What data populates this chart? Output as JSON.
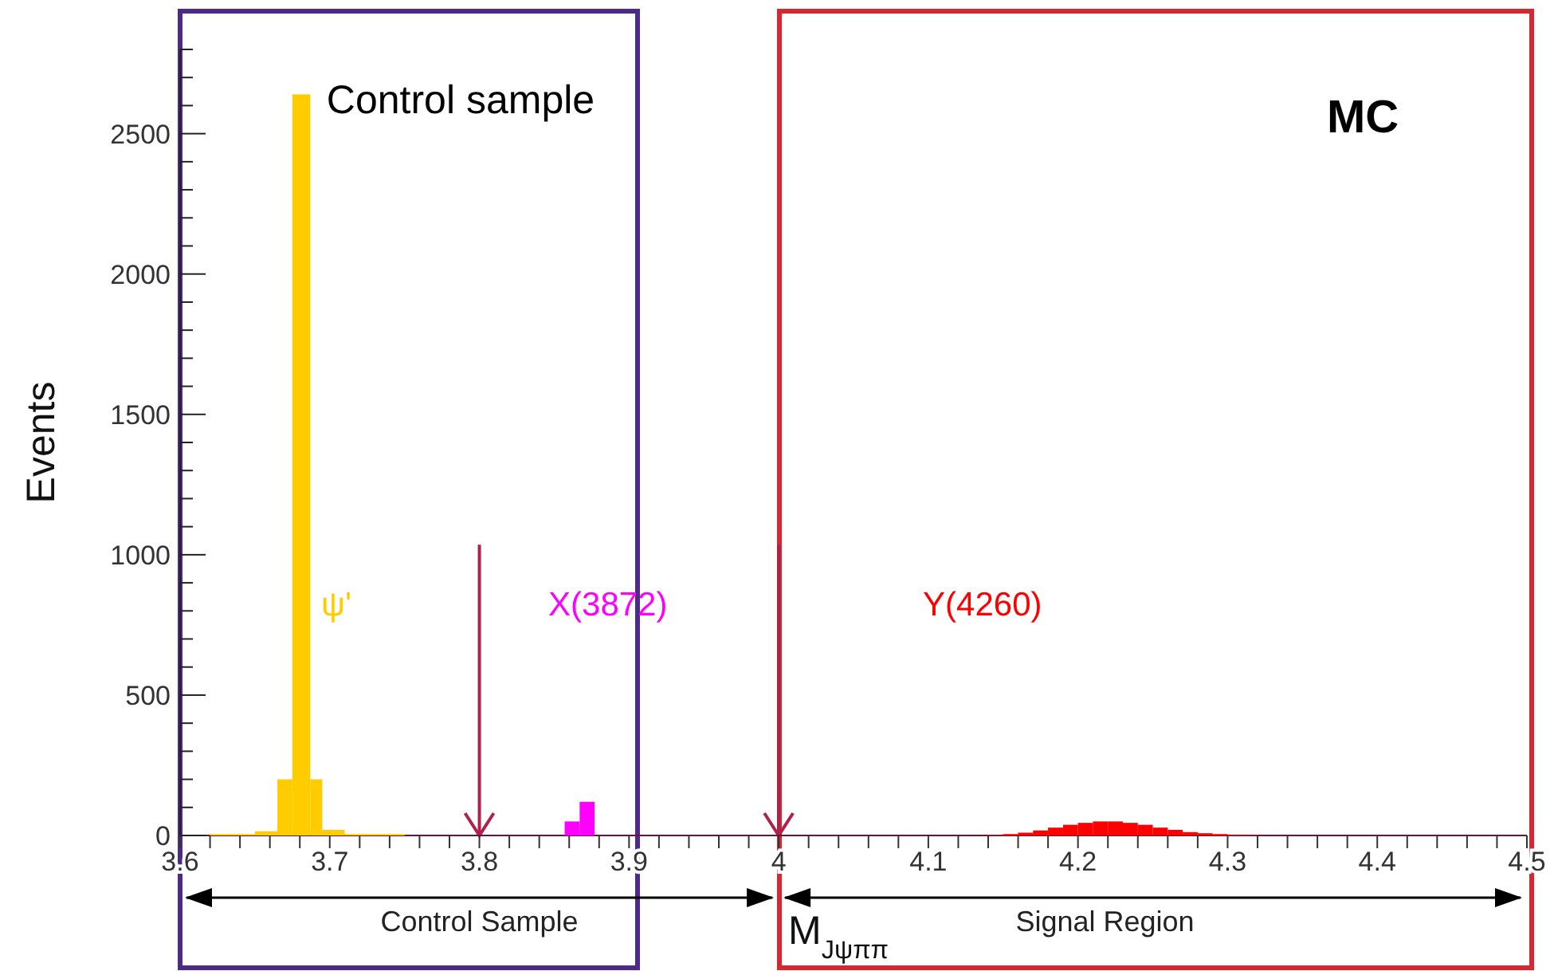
{
  "chart_data": {
    "type": "histogram",
    "xlabel": "M$_{Jψππ}$",
    "ylabel": "Events",
    "xlim": [
      3.6,
      4.5
    ],
    "xticks": [
      3.6,
      {
        "value": 3.62,
        "label": null
      },
      {
        "value": 3.64,
        "label": null
      },
      {
        "value": 3.66,
        "label": null
      },
      {
        "value": 3.68,
        "label": null
      },
      3.7,
      {
        "value": 3.72,
        "label": null
      },
      {
        "value": 3.74,
        "label": null
      },
      {
        "value": 3.76,
        "label": null
      },
      {
        "value": 3.78,
        "label": null
      },
      3.8,
      {
        "value": 3.82,
        "label": null
      },
      {
        "value": 3.84,
        "label": null
      },
      {
        "value": 3.86,
        "label": null
      },
      {
        "value": 3.88,
        "label": null
      },
      3.9,
      {
        "value": 3.92,
        "label": null
      },
      {
        "value": 3.94,
        "label": null
      },
      {
        "value": 3.96,
        "label": null
      },
      {
        "value": 3.98,
        "label": null
      },
      4,
      {
        "value": 4.02,
        "label": null
      },
      {
        "value": 4.04,
        "label": null
      },
      {
        "value": 4.06,
        "label": null
      },
      {
        "value": 4.08,
        "label": null
      },
      4.1,
      {
        "value": 4.12,
        "label": null
      },
      {
        "value": 4.14,
        "label": null
      },
      {
        "value": 4.16,
        "label": null
      },
      {
        "value": 4.18,
        "label": null
      },
      4.2,
      {
        "value": 4.22,
        "label": null
      },
      {
        "value": 4.24,
        "label": null
      },
      {
        "value": 4.26,
        "label": null
      },
      {
        "value": 4.28,
        "label": null
      },
      4.3,
      {
        "value": 4.32,
        "label": null
      },
      {
        "value": 4.34,
        "label": null
      },
      {
        "value": 4.36,
        "label": null
      },
      {
        "value": 4.38,
        "label": null
      },
      4.4,
      {
        "value": 4.42,
        "label": null
      },
      {
        "value": 4.44,
        "label": null
      },
      {
        "value": 4.46,
        "label": null
      },
      {
        "value": 4.48,
        "label": null
      },
      4.5
    ],
    "ylim": [
      0,
      2800
    ],
    "yticks": [
      0,
      {
        "value": 100,
        "label": null
      },
      {
        "value": 200,
        "label": null
      },
      {
        "value": 300,
        "label": null
      },
      {
        "value": 400,
        "label": null
      },
      500,
      {
        "value": 600,
        "label": null
      },
      {
        "value": 700,
        "label": null
      },
      {
        "value": 800,
        "label": null
      },
      {
        "value": 900,
        "label": null
      },
      1000,
      {
        "value": 1100,
        "label": null
      },
      {
        "value": 1200,
        "label": null
      },
      {
        "value": 1300,
        "label": null
      },
      {
        "value": 1400,
        "label": null
      },
      1500,
      {
        "value": 1600,
        "label": null
      },
      {
        "value": 1700,
        "label": null
      },
      {
        "value": 1800,
        "label": null
      },
      {
        "value": 1900,
        "label": null
      },
      2000,
      {
        "value": 2100,
        "label": null
      },
      {
        "value": 2200,
        "label": null
      },
      {
        "value": 2300,
        "label": null
      },
      {
        "value": 2400,
        "label": null
      },
      2500,
      {
        "value": 2600,
        "label": null
      },
      {
        "value": 2700,
        "label": null
      },
      {
        "value": 2800,
        "label": null
      }
    ],
    "bins": [
      3.62,
      3.65,
      3.665,
      3.675,
      3.687,
      3.695,
      3.71,
      3.75,
      3.857,
      3.867,
      3.877,
      4.14,
      4.15,
      4.16,
      4.17,
      4.18,
      4.19,
      4.2,
      4.21,
      4.22,
      4.23,
      4.24,
      4.25,
      4.26,
      4.27,
      4.28,
      4.29,
      4.3,
      4.31,
      4.32
    ],
    "series": [
      {
        "name": "ψ'",
        "color": "#ffcc00",
        "values": [
          5,
          15,
          200,
          2640,
          200,
          20,
          5,
          null,
          null,
          null,
          null,
          null,
          null,
          null,
          null,
          null,
          null,
          null,
          null,
          null,
          null,
          null,
          null,
          null,
          null,
          null,
          null,
          null,
          null
        ]
      },
      {
        "name": "X(3872)",
        "color": "#ff00ff",
        "values": [
          null,
          null,
          null,
          null,
          null,
          null,
          null,
          null,
          50,
          120,
          null,
          null,
          null,
          null,
          null,
          null,
          null,
          null,
          null,
          null,
          null,
          null,
          null,
          null,
          null,
          null,
          null,
          null,
          null
        ]
      },
      {
        "name": "Y(4260)",
        "color": "#ff0000",
        "values": [
          null,
          null,
          null,
          null,
          null,
          null,
          null,
          null,
          null,
          null,
          null,
          2,
          5,
          10,
          18,
          28,
          38,
          45,
          50,
          50,
          45,
          38,
          28,
          20,
          12,
          8,
          5,
          3,
          2
        ]
      }
    ],
    "ref_lines": [
      {
        "axis": "x",
        "value": 3.8,
        "color": "#b0204a"
      },
      {
        "axis": "x",
        "value": 4,
        "color": "#b0204a"
      }
    ],
    "annotations": [
      "MC",
      "Control Sample",
      "Signal Region",
      "Control sample"
    ]
  }
}
